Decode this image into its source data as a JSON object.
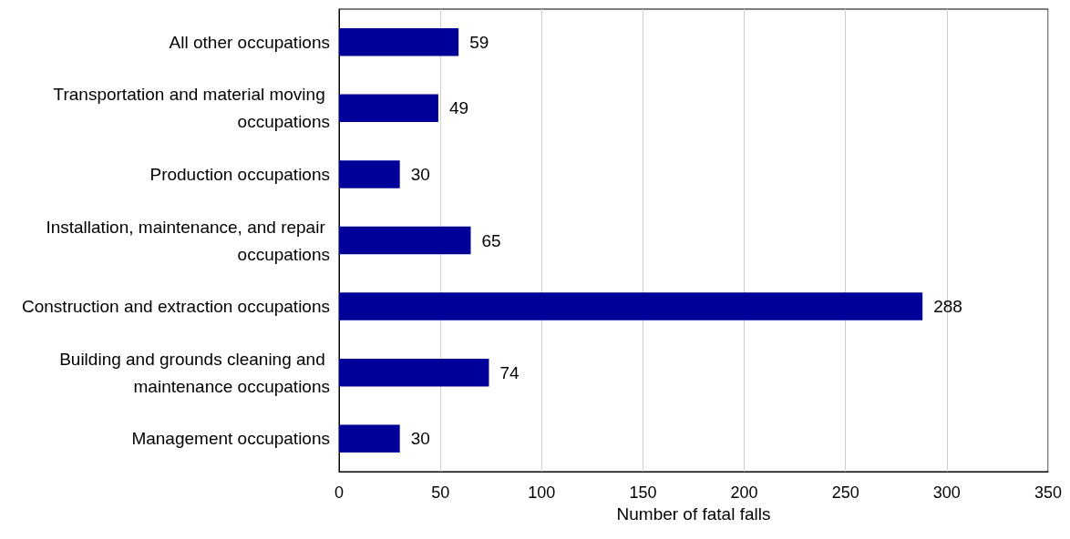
{
  "chart_data": {
    "type": "bar",
    "orientation": "horizontal",
    "xlabel": "Number of fatal falls",
    "categories": [
      "All other occupations",
      "Transportation and material moving occupations",
      "Production occupations",
      "Installation, maintenance, and repair occupations",
      "Construction and extraction occupations",
      "Building and grounds cleaning and maintenance occupations",
      "Management occupations"
    ],
    "values": [
      59,
      49,
      30,
      65,
      288,
      74,
      30
    ],
    "color": "#000099",
    "data_labels": true,
    "xlim": [
      0,
      350
    ],
    "xticks": [
      0,
      50,
      100,
      150,
      200,
      250,
      300,
      350
    ],
    "grid": "x"
  }
}
